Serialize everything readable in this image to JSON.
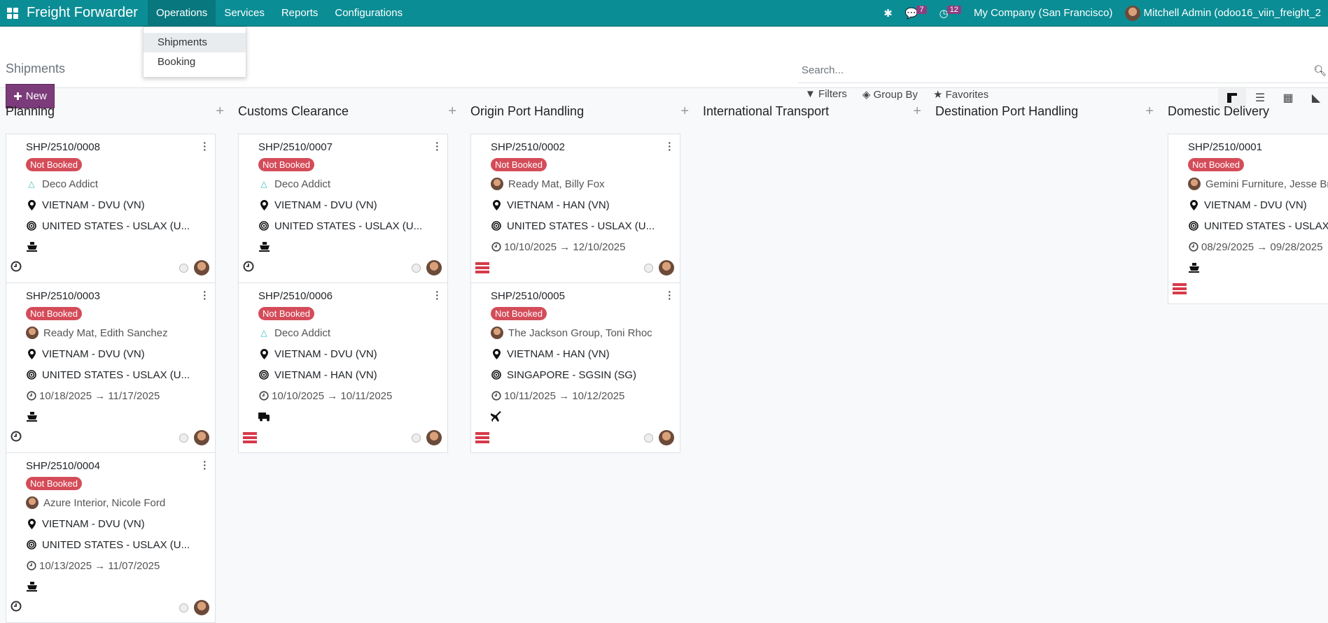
{
  "navbar": {
    "brand": "Freight Forwarder",
    "menus": [
      "Operations",
      "Services",
      "Reports",
      "Configurations"
    ],
    "messages_count": "7",
    "activities_count": "12",
    "company": "My Company (San Francisco)",
    "user": "Mitchell Admin (odoo16_viin_freight_2"
  },
  "dropdown": {
    "items": [
      "Shipments",
      "Booking"
    ]
  },
  "control": {
    "title": "Shipments",
    "new_label": "New",
    "search_placeholder": "Search...",
    "filters": "Filters",
    "group_by": "Group By",
    "favorites": "Favorites",
    "active_view": "kanban"
  },
  "colors": {
    "navbar": "#0b8d95",
    "primary": "#7c3b7a",
    "badge": "#d44c59"
  },
  "columns": [
    {
      "title": "Planning",
      "cards": [
        {
          "ref": "SHP/2510/0008",
          "badge": "Not Booked",
          "partner": "Deco Addict",
          "partner_icon": "logo",
          "origin": "VIETNAM - DVU (VN)",
          "destination": "UNITED STATES - USLAX (U...",
          "dates": "",
          "transport": "ship",
          "status_icon": "clock"
        },
        {
          "ref": "SHP/2510/0003",
          "badge": "Not Booked",
          "partner": "Ready Mat, Edith Sanchez",
          "partner_icon": "avatar",
          "origin": "VIETNAM - DVU (VN)",
          "destination": "UNITED STATES - USLAX (U...",
          "dates": "10/18/2025 → 11/17/2025",
          "transport": "ship",
          "status_icon": "clock"
        },
        {
          "ref": "SHP/2510/0004",
          "badge": "Not Booked",
          "partner": "Azure Interior, Nicole Ford",
          "partner_icon": "avatar",
          "origin": "VIETNAM - DVU (VN)",
          "destination": "UNITED STATES - USLAX (U...",
          "dates": "10/13/2025 → 11/07/2025",
          "transport": "ship",
          "status_icon": "clock"
        }
      ]
    },
    {
      "title": "Customs Clearance",
      "cards": [
        {
          "ref": "SHP/2510/0007",
          "badge": "Not Booked",
          "partner": "Deco Addict",
          "partner_icon": "logo",
          "origin": "VIETNAM - DVU (VN)",
          "destination": "UNITED STATES - USLAX (U...",
          "dates": "",
          "transport": "ship",
          "status_icon": "clock"
        },
        {
          "ref": "SHP/2510/0006",
          "badge": "Not Booked",
          "partner": "Deco Addict",
          "partner_icon": "logo",
          "origin": "VIETNAM - DVU (VN)",
          "destination": "VIETNAM - HAN (VN)",
          "dates": "10/10/2025 → 10/11/2025",
          "transport": "truck",
          "status_icon": "stack"
        }
      ]
    },
    {
      "title": "Origin Port Handling",
      "cards": [
        {
          "ref": "SHP/2510/0002",
          "badge": "Not Booked",
          "partner": "Ready Mat, Billy Fox",
          "partner_icon": "avatar",
          "origin": "VIETNAM - HAN (VN)",
          "destination": "UNITED STATES - USLAX (U...",
          "dates": "10/10/2025 → 12/10/2025",
          "transport": "",
          "status_icon": "stack"
        },
        {
          "ref": "SHP/2510/0005",
          "badge": "Not Booked",
          "partner": "The Jackson Group, Toni Rhoc",
          "partner_icon": "avatar",
          "origin": "VIETNAM - HAN (VN)",
          "destination": "SINGAPORE - SGSIN (SG)",
          "dates": "10/11/2025 → 10/12/2025",
          "transport": "plane",
          "status_icon": "stack"
        }
      ]
    },
    {
      "title": "International Transport",
      "cards": []
    },
    {
      "title": "Destination Port Handling",
      "cards": []
    },
    {
      "title": "Domestic Delivery",
      "cards": [
        {
          "ref": "SHP/2510/0001",
          "badge": "Not Booked",
          "partner": "Gemini Furniture, Jesse Bro",
          "partner_icon": "avatar",
          "origin": "VIETNAM - DVU (VN)",
          "destination": "UNITED STATES - USLAX (US)",
          "dates": "08/29/2025 → 09/28/2025",
          "transport": "ship",
          "status_icon": "stack"
        }
      ]
    }
  ]
}
